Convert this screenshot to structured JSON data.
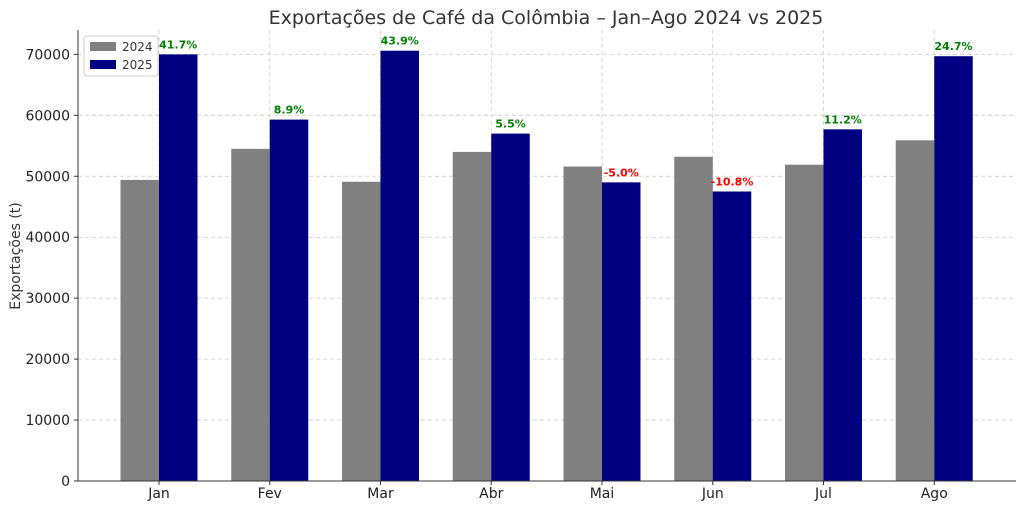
{
  "colors": {
    "series_2024": "#808080",
    "series_2025": "#000080",
    "positive_label": "#008000",
    "negative_label": "#ff0000"
  },
  "chart_data": {
    "type": "bar",
    "title": "Exportações de Café da Colômbia – Jan–Ago 2024 vs 2025",
    "xlabel": "",
    "ylabel": "Exportações (t)",
    "ylim": [
      0,
      74000
    ],
    "yticks": [
      0,
      10000,
      20000,
      30000,
      40000,
      50000,
      60000,
      70000
    ],
    "grid": true,
    "legend_position": "top-left",
    "categories": [
      "Jan",
      "Fev",
      "Mar",
      "Abr",
      "Mai",
      "Jun",
      "Jul",
      "Ago"
    ],
    "series": [
      {
        "name": "2024",
        "values": [
          49400,
          54500,
          49100,
          54000,
          51600,
          53200,
          51900,
          55900
        ]
      },
      {
        "name": "2025",
        "values": [
          70000,
          59300,
          70600,
          57000,
          49000,
          47500,
          57700,
          69700
        ]
      }
    ],
    "annotations": [
      "41.7%",
      "8.9%",
      "43.9%",
      "5.5%",
      "-5.0%",
      "-10.8%",
      "11.2%",
      "24.7%"
    ]
  }
}
